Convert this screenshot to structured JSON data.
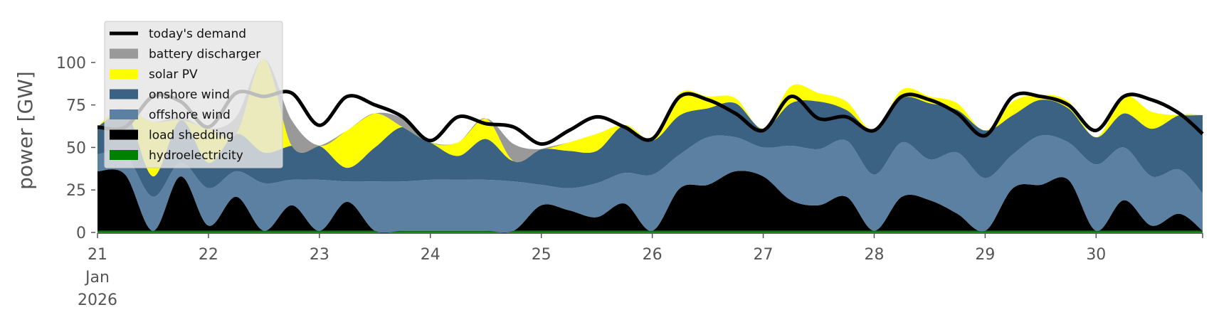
{
  "chart_data": {
    "type": "area",
    "title": "",
    "xlabel": "",
    "ylabel": "power [GW]",
    "ylim": [
      0,
      120
    ],
    "yticks": [
      "0",
      "25",
      "50",
      "75",
      "100"
    ],
    "ytick_values": [
      0,
      25,
      50,
      75,
      100
    ],
    "xlim": [
      0,
      9.96
    ],
    "xticks": [
      {
        "x": 0,
        "lines": [
          "21",
          "Jan",
          "2026"
        ]
      },
      {
        "x": 1,
        "lines": [
          "22"
        ]
      },
      {
        "x": 2,
        "lines": [
          "23"
        ]
      },
      {
        "x": 3,
        "lines": [
          "24"
        ]
      },
      {
        "x": 4,
        "lines": [
          "25"
        ]
      },
      {
        "x": 5,
        "lines": [
          "26"
        ]
      },
      {
        "x": 6,
        "lines": [
          "27"
        ]
      },
      {
        "x": 7,
        "lines": [
          "28"
        ]
      },
      {
        "x": 8,
        "lines": [
          "29"
        ]
      },
      {
        "x": 9,
        "lines": [
          "30"
        ]
      }
    ],
    "legend_position": "top-left",
    "grid": false,
    "x": [
      0,
      0.25,
      0.5,
      0.75,
      1,
      1.25,
      1.5,
      1.75,
      2,
      2.25,
      2.5,
      2.75,
      3,
      3.25,
      3.5,
      3.75,
      4,
      4.25,
      4.5,
      4.75,
      5,
      5.25,
      5.5,
      5.75,
      6,
      6.25,
      6.5,
      6.75,
      7,
      7.25,
      7.5,
      7.75,
      8,
      8.25,
      8.5,
      8.75,
      9,
      9.25,
      9.5,
      9.75,
      9.96
    ],
    "series": [
      {
        "name": "hydroelectricity",
        "color": "#008000",
        "values": [
          1,
          1,
          1,
          1,
          1,
          1,
          1,
          1,
          1,
          1,
          1,
          1,
          1,
          1,
          1,
          1,
          1,
          1,
          1,
          1,
          1,
          1,
          1,
          1,
          1,
          1,
          1,
          1,
          1,
          1,
          1,
          1,
          1,
          1,
          1,
          1,
          1,
          1,
          1,
          1,
          1
        ]
      },
      {
        "name": "load shedding",
        "color": "#000000",
        "values": [
          35,
          33,
          0,
          32,
          3,
          20,
          0,
          15,
          0,
          17,
          0,
          0,
          0,
          0,
          0,
          0,
          15,
          12,
          8,
          16,
          0,
          25,
          27,
          35,
          32,
          18,
          15,
          20,
          0,
          20,
          18,
          10,
          0,
          25,
          27,
          30,
          0,
          18,
          3,
          10,
          0
        ]
      },
      {
        "name": "offshore wind",
        "color": "#5b80a2",
        "values": [
          10,
          12,
          20,
          8,
          22,
          15,
          28,
          15,
          30,
          12,
          29,
          29,
          30,
          30,
          30,
          29,
          12,
          13,
          20,
          18,
          33,
          20,
          28,
          20,
          17,
          32,
          33,
          33,
          33,
          32,
          24,
          36,
          31,
          20,
          29,
          22,
          39,
          31,
          29,
          26,
          22
        ]
      },
      {
        "name": "onshore wind",
        "color": "#3b6282",
        "values": [
          16,
          26,
          12,
          25,
          15,
          22,
          18,
          20,
          20,
          8,
          20,
          32,
          22,
          14,
          24,
          12,
          21,
          22,
          19,
          28,
          20,
          23,
          17,
          20,
          11,
          25,
          28,
          18,
          26,
          26,
          33,
          25,
          28,
          23,
          21,
          20,
          16,
          20,
          28,
          32,
          46
        ]
      },
      {
        "name": "solar PV",
        "color": "#ffff00",
        "values": [
          0,
          0,
          32,
          0,
          20,
          0,
          55,
          0,
          0,
          22,
          20,
          0,
          0,
          8,
          12,
          0,
          0,
          5,
          10,
          0,
          0,
          13,
          7,
          3,
          0,
          10,
          5,
          5,
          0,
          5,
          4,
          4,
          0,
          8,
          3,
          4,
          0,
          10,
          10,
          0,
          0
        ]
      },
      {
        "name": "battery discharger",
        "color": "#999999",
        "values": [
          0,
          0,
          0,
          2,
          0,
          10,
          0,
          15,
          0,
          0,
          0,
          5,
          0,
          0,
          0,
          10,
          0,
          0,
          0,
          0,
          0,
          0,
          0,
          0,
          0,
          0,
          0,
          0,
          0,
          0,
          0,
          0,
          0,
          0,
          0,
          0,
          0,
          0,
          0,
          0,
          0
        ]
      }
    ],
    "demand": {
      "name": "today's demand",
      "color": "#000000",
      "values": [
        62,
        62,
        80,
        77,
        62,
        82,
        80,
        82,
        63,
        80,
        75,
        68,
        54,
        68,
        64,
        62,
        52,
        60,
        68,
        62,
        55,
        80,
        78,
        70,
        60,
        80,
        67,
        68,
        60,
        80,
        78,
        70,
        57,
        80,
        80,
        75,
        60,
        80,
        78,
        70,
        58
      ]
    },
    "legend": [
      {
        "name": "today's demand",
        "kind": "line",
        "color": "#000000"
      },
      {
        "name": "battery discharger",
        "kind": "patch",
        "color": "#999999"
      },
      {
        "name": "solar PV",
        "kind": "patch",
        "color": "#ffff00"
      },
      {
        "name": "onshore wind",
        "kind": "patch",
        "color": "#3b6282"
      },
      {
        "name": "offshore wind",
        "kind": "patch",
        "color": "#5b80a2"
      },
      {
        "name": "load shedding",
        "kind": "patch",
        "color": "#000000"
      },
      {
        "name": "hydroelectricity",
        "kind": "patch",
        "color": "#008000"
      }
    ]
  }
}
